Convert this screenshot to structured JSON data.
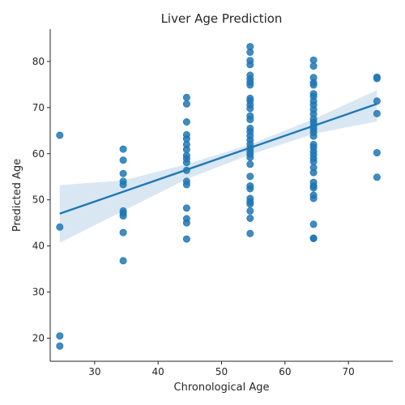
{
  "chart_data": {
    "type": "scatter",
    "title": "Liver Age Prediction",
    "xlabel": "Chronological Age",
    "ylabel": "Predicted Age",
    "xlim": [
      23,
      77
    ],
    "ylim": [
      15,
      87
    ],
    "xticks": [
      30,
      40,
      50,
      60,
      70
    ],
    "yticks": [
      20,
      30,
      40,
      50,
      60,
      70,
      80
    ],
    "grid": false,
    "colors": {
      "points": "#1f77b4",
      "regression_line": "#1f77b4",
      "confidence_band": "#b9d3ea",
      "axis": "#262626"
    },
    "regression": {
      "x": [
        24.5,
        74.5
      ],
      "y": [
        47.0,
        70.8
      ]
    },
    "confidence_band": {
      "x": [
        24.5,
        34.5,
        44.5,
        54.5,
        64.5,
        74.5
      ],
      "upper": [
        53.2,
        54.2,
        57.7,
        62.0,
        67.5,
        73.8
      ],
      "lower": [
        40.7,
        47.6,
        54.5,
        59.8,
        64.3,
        67.0
      ]
    },
    "series": [
      {
        "points": [
          [
            24.5,
            64.0
          ],
          [
            24.5,
            44.1
          ],
          [
            24.5,
            20.5
          ],
          [
            24.5,
            18.3
          ],
          [
            34.5,
            61.0
          ],
          [
            34.5,
            58.6
          ],
          [
            34.5,
            55.7
          ],
          [
            34.5,
            54.0
          ],
          [
            34.5,
            53.3
          ],
          [
            34.5,
            47.6
          ],
          [
            34.5,
            47.1
          ],
          [
            34.5,
            46.5
          ],
          [
            34.5,
            42.9
          ],
          [
            34.5,
            36.8
          ],
          [
            44.5,
            72.2
          ],
          [
            44.5,
            70.8
          ],
          [
            44.5,
            66.9
          ],
          [
            44.5,
            64.1
          ],
          [
            44.5,
            63.2
          ],
          [
            44.5,
            62.0
          ],
          [
            44.5,
            60.9
          ],
          [
            44.5,
            59.6
          ],
          [
            44.5,
            58.9
          ],
          [
            44.5,
            58.1
          ],
          [
            44.5,
            56.4
          ],
          [
            44.5,
            54.0
          ],
          [
            44.5,
            53.3
          ],
          [
            44.5,
            48.2
          ],
          [
            44.5,
            45.9
          ],
          [
            44.5,
            45.0
          ],
          [
            44.5,
            41.5
          ],
          [
            54.5,
            83.2
          ],
          [
            54.5,
            82.0
          ],
          [
            54.5,
            80.2
          ],
          [
            54.5,
            79.3
          ],
          [
            54.5,
            77.0
          ],
          [
            54.5,
            76.2
          ],
          [
            54.5,
            75.5
          ],
          [
            54.5,
            74.9
          ],
          [
            54.5,
            72.0
          ],
          [
            54.5,
            71.5
          ],
          [
            54.5,
            70.6
          ],
          [
            54.5,
            69.8
          ],
          [
            54.5,
            68.2
          ],
          [
            54.5,
            67.4
          ],
          [
            54.5,
            65.5
          ],
          [
            54.5,
            64.8
          ],
          [
            54.5,
            63.9
          ],
          [
            54.5,
            63.0
          ],
          [
            54.5,
            62.1
          ],
          [
            54.5,
            61.2
          ],
          [
            54.5,
            60.5
          ],
          [
            54.5,
            59.9
          ],
          [
            54.5,
            59.2
          ],
          [
            54.5,
            57.7
          ],
          [
            54.5,
            55.1
          ],
          [
            54.5,
            53.0
          ],
          [
            54.5,
            52.4
          ],
          [
            54.5,
            50.3
          ],
          [
            54.5,
            49.6
          ],
          [
            54.5,
            49.1
          ],
          [
            54.5,
            47.6
          ],
          [
            54.5,
            46.0
          ],
          [
            54.5,
            42.7
          ],
          [
            64.5,
            80.3
          ],
          [
            64.5,
            79.0
          ],
          [
            64.5,
            76.5
          ],
          [
            64.5,
            75.4
          ],
          [
            64.5,
            74.9
          ],
          [
            64.5,
            73.0
          ],
          [
            64.5,
            72.4
          ],
          [
            64.5,
            71.4
          ],
          [
            64.5,
            70.6
          ],
          [
            64.5,
            69.6
          ],
          [
            64.5,
            68.6
          ],
          [
            64.5,
            67.5
          ],
          [
            64.5,
            66.8
          ],
          [
            64.5,
            66.0
          ],
          [
            64.5,
            65.3
          ],
          [
            64.5,
            64.6
          ],
          [
            64.5,
            63.8
          ],
          [
            64.5,
            62.0
          ],
          [
            64.5,
            61.4
          ],
          [
            64.5,
            60.5
          ],
          [
            64.5,
            59.8
          ],
          [
            64.5,
            59.0
          ],
          [
            64.5,
            58.3
          ],
          [
            64.5,
            57.0
          ],
          [
            64.5,
            55.9
          ],
          [
            64.5,
            53.8
          ],
          [
            64.5,
            53.0
          ],
          [
            64.5,
            52.6
          ],
          [
            64.5,
            51.0
          ],
          [
            64.5,
            50.3
          ],
          [
            64.5,
            44.7
          ],
          [
            64.5,
            41.7
          ],
          [
            64.5,
            41.6
          ],
          [
            74.5,
            76.6
          ],
          [
            74.5,
            76.3
          ],
          [
            74.5,
            71.4
          ],
          [
            74.5,
            68.7
          ],
          [
            74.5,
            60.2
          ],
          [
            74.5,
            54.9
          ]
        ]
      }
    ]
  }
}
